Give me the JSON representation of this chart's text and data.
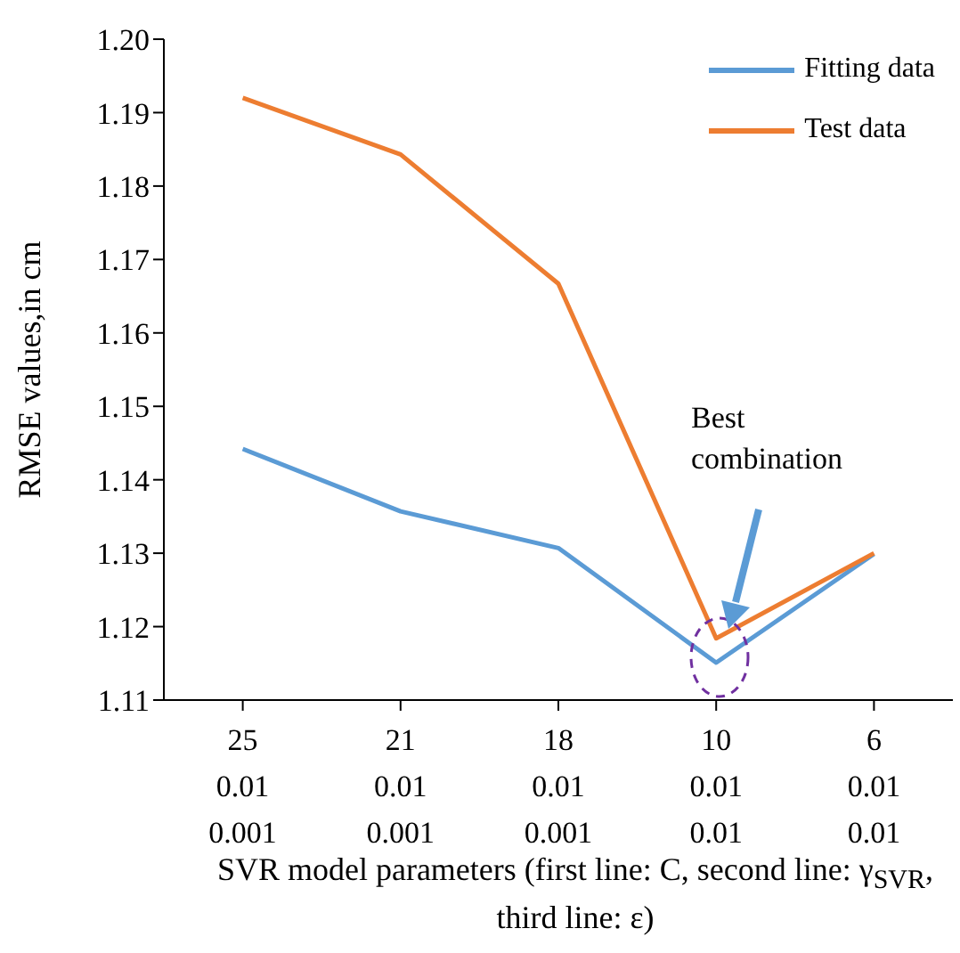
{
  "chart_data": {
    "type": "line",
    "xlabel": "SVR model parameters (first line: C, second line: γ$_{SVR}$, third line: ε)",
    "ylabel": "RMSE values,in cm",
    "categories": [
      "25\n0.01\n0.001",
      "21\n0.01\n0.001",
      "18\n0.01\n0.001",
      "10\n0.01\n0.01",
      "6\n0.01\n0.01"
    ],
    "series": [
      {
        "name": "Fitting data",
        "color": "#5b9bd5",
        "values": [
          1.1442,
          1.1357,
          1.1307,
          1.1151,
          1.1299
        ]
      },
      {
        "name": "Test data",
        "color": "#ed7d31",
        "values": [
          1.192,
          1.1843,
          1.1667,
          1.1184,
          1.13
        ]
      }
    ],
    "ylim": [
      1.11,
      1.2
    ],
    "yticks": [
      1.11,
      1.12,
      1.13,
      1.14,
      1.15,
      1.16,
      1.17,
      1.18,
      1.19,
      {
        "value": 1.2,
        "label": "1.20"
      }
    ],
    "annotations": [
      "Best combination"
    ],
    "legend": "top right",
    "grid": false,
    "marker": "none",
    "line_style": "solid"
  }
}
